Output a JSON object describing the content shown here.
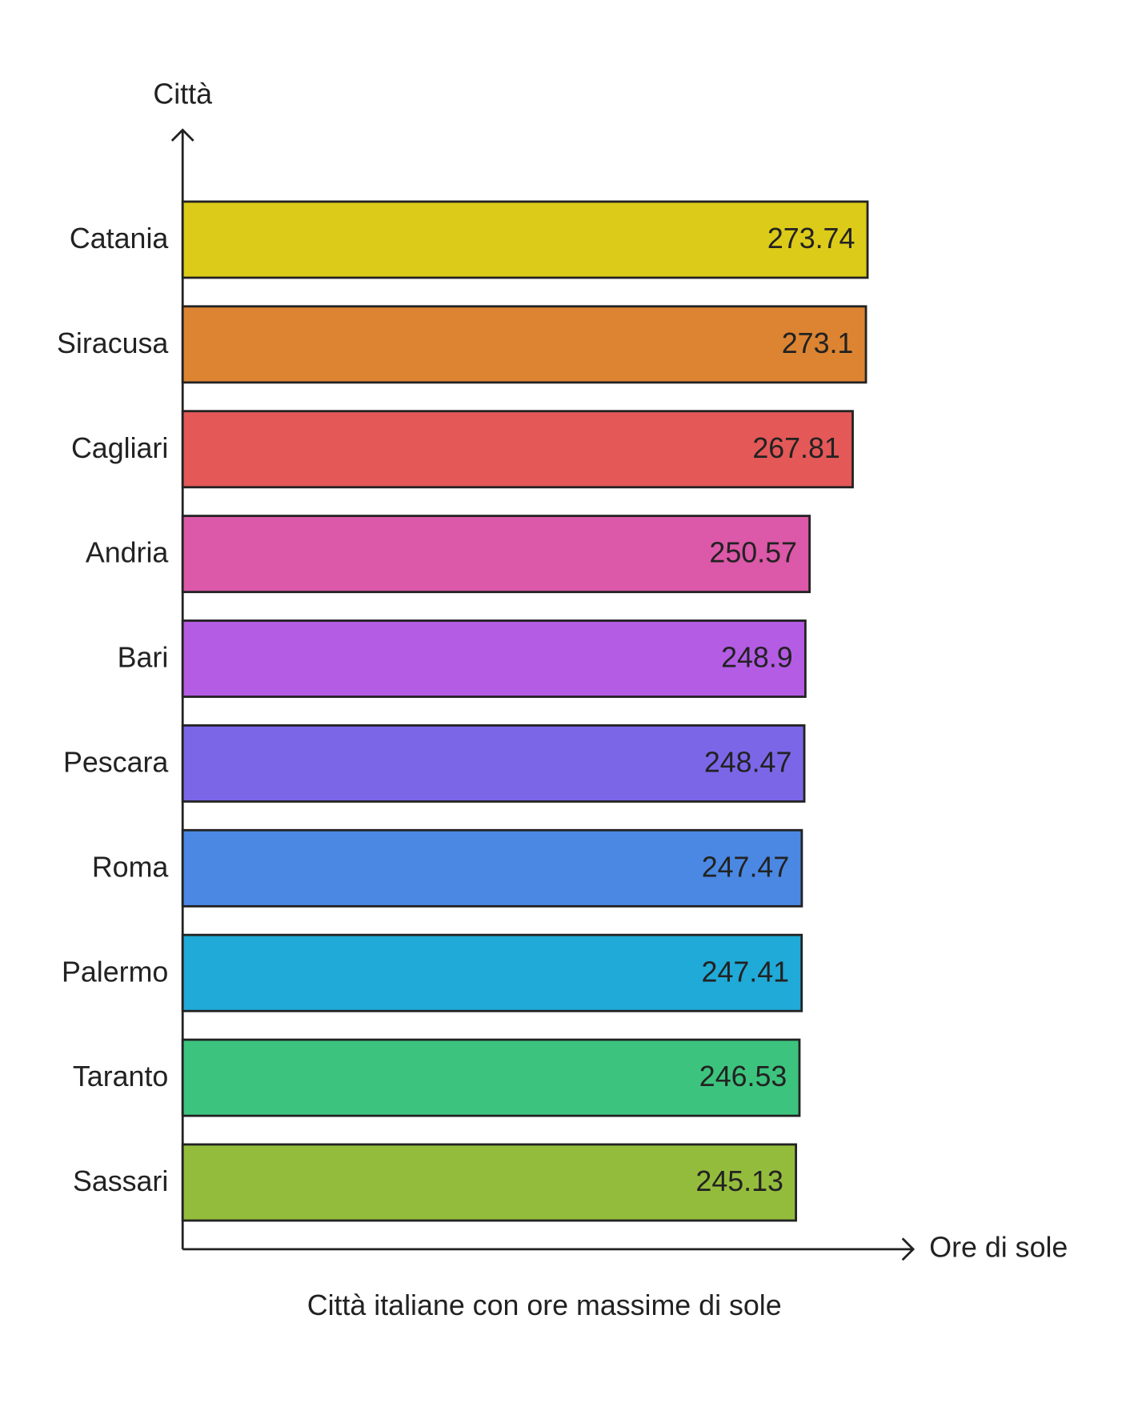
{
  "chart_data": {
    "type": "bar",
    "orientation": "horizontal",
    "title": "Città italiane con ore massime di sole",
    "x_label": "Ore di sole",
    "y_label": "Città",
    "categories": [
      "Catania",
      "Siracusa",
      "Cagliari",
      "Andria",
      "Bari",
      "Pescara",
      "Roma",
      "Palermo",
      "Taranto",
      "Sassari"
    ],
    "values": [
      273.74,
      273.1,
      267.81,
      250.57,
      248.9,
      248.47,
      247.47,
      247.41,
      246.53,
      245.13
    ],
    "colors": [
      "#dccb18",
      "#dc8432",
      "#e45858",
      "#dc58a8",
      "#b45ce4",
      "#7c66e8",
      "#4a88e4",
      "#20aad8",
      "#3cc47e",
      "#94bc3c"
    ],
    "xlim": [
      0,
      292
    ]
  }
}
